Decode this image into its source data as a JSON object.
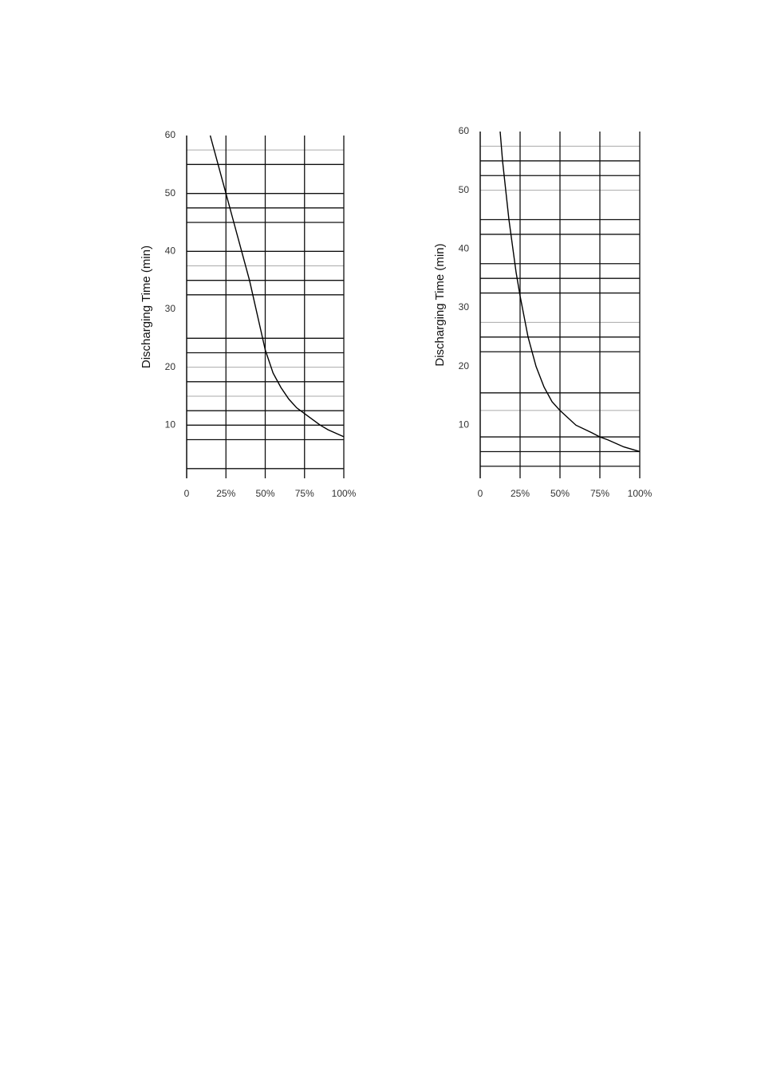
{
  "chart_data": [
    {
      "type": "line",
      "ylabel": "Discharging Time (min)",
      "x": [
        15,
        20,
        25,
        30,
        35,
        40,
        45,
        50,
        55,
        60,
        65,
        70,
        75,
        80,
        85,
        90,
        95,
        100
      ],
      "series": [
        {
          "color": "#000000",
          "values": [
            60,
            55,
            50,
            45,
            40,
            35,
            29,
            23,
            19,
            16.5,
            14.5,
            13,
            12,
            11,
            10,
            9.2,
            8.6,
            8
          ]
        }
      ],
      "xlim": [
        0,
        100
      ],
      "ylim": [
        0,
        60
      ],
      "xticks": [
        0,
        {
          "value": 25,
          "label": "25%"
        },
        {
          "value": 50,
          "label": "50%"
        },
        {
          "value": 75,
          "label": "75%"
        },
        {
          "value": 100,
          "label": "100%"
        }
      ],
      "yticks": [
        10,
        20,
        30,
        40,
        50,
        60
      ],
      "hlines": [
        55,
        50,
        47.5,
        45,
        40,
        35,
        32.5,
        25,
        22.5,
        17.5,
        12.5,
        10,
        7.5,
        2.5
      ],
      "hlines_light": [
        57.5,
        37.5,
        20,
        15
      ]
    },
    {
      "type": "line",
      "ylabel": "Discharging Time (min)",
      "x": [
        12.5,
        14,
        16,
        18,
        20,
        22.5,
        25,
        30,
        35,
        40,
        45,
        50,
        60,
        70,
        75,
        80,
        90,
        100
      ],
      "series": [
        {
          "color": "#000000",
          "values": [
            60,
            55,
            50,
            45,
            41,
            36,
            32,
            25,
            20,
            16.5,
            14,
            12.5,
            10,
            8.7,
            8,
            7.5,
            6.3,
            5.5
          ]
        }
      ],
      "xlim": [
        0,
        100
      ],
      "ylim": [
        0,
        60
      ],
      "xticks": [
        0,
        {
          "value": 25,
          "label": "25%"
        },
        {
          "value": 50,
          "label": "50%"
        },
        {
          "value": 75,
          "label": "75%"
        },
        {
          "value": 100,
          "label": "100%"
        }
      ],
      "yticks": [
        10,
        20,
        30,
        40,
        50,
        60
      ],
      "hlines": [
        55,
        52.5,
        45,
        42.5,
        37.5,
        35,
        32.5,
        25,
        22.5,
        15.5,
        8,
        5.5,
        3
      ],
      "hlines_light": [
        57.5,
        50,
        27.5,
        12.5
      ]
    }
  ]
}
